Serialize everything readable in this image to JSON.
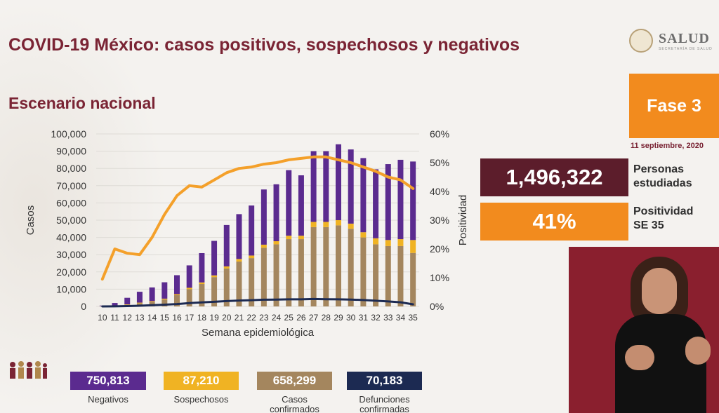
{
  "header": {
    "title": "COVID-19 México: casos positivos, sospechosos y negativos",
    "subtitle": "Escenario nacional"
  },
  "logo": {
    "name": "SALUD",
    "sub": "SECRETARÍA DE SALUD"
  },
  "phase": {
    "label": "Fase 3",
    "date": "11 septiembre, 2020"
  },
  "stats": [
    {
      "value": "1,496,322",
      "label_1": "Personas",
      "label_2": "estudiadas",
      "color": "#5c1d2b"
    },
    {
      "value": "41%",
      "label_1": "Positividad",
      "label_2": "SE 35",
      "color": "#f28b1e"
    }
  ],
  "legend": [
    {
      "value": "750,813",
      "label_1": "Negativos",
      "label_2": "",
      "color": "#5b2b8f"
    },
    {
      "value": "87,210",
      "label_1": "Sospechosos",
      "label_2": "",
      "color": "#f0b323"
    },
    {
      "value": "658,299",
      "label_1": "Casos",
      "label_2": "confirmados",
      "color": "#a4865e"
    },
    {
      "value": "70,183",
      "label_1": "Defunciones",
      "label_2": "confirmadas",
      "color": "#1c2a52"
    }
  ],
  "icons": {
    "logo": "government-seal-icon",
    "people": "people-group-icon"
  },
  "chart_data": {
    "type": "bar",
    "stacked": true,
    "xlabel": "Semana epidemiológica",
    "ylabel": "Casos",
    "y2label": "Positividad",
    "ylim": [
      0,
      100000
    ],
    "y2lim": [
      0,
      60
    ],
    "yticks": [
      "0",
      "10,000",
      "20,000",
      "30,000",
      "40,000",
      "50,000",
      "60,000",
      "70,000",
      "80,000",
      "90,000",
      "100,000"
    ],
    "y2ticks": [
      "0%",
      "10%",
      "20%",
      "30%",
      "40%",
      "50%",
      "60%"
    ],
    "categories": [
      "10",
      "11",
      "12",
      "13",
      "14",
      "15",
      "16",
      "17",
      "18",
      "19",
      "20",
      "21",
      "22",
      "23",
      "24",
      "25",
      "26",
      "27",
      "28",
      "29",
      "30",
      "31",
      "32",
      "33",
      "34",
      "35"
    ],
    "series": [
      {
        "name": "Casos confirmados",
        "color": "#a4865e",
        "values": [
          100,
          500,
          900,
          1800,
          2500,
          4000,
          6500,
          10000,
          13000,
          17000,
          22000,
          26000,
          28000,
          34000,
          36000,
          39000,
          39000,
          46000,
          46000,
          47000,
          45000,
          40000,
          36000,
          35000,
          35000,
          31000
        ]
      },
      {
        "name": "Sospechosos",
        "color": "#f0b323",
        "values": [
          50,
          100,
          300,
          400,
          500,
          500,
          600,
          800,
          900,
          1000,
          1200,
          1500,
          1500,
          1800,
          1800,
          2000,
          2000,
          3000,
          3000,
          3000,
          3000,
          3000,
          3500,
          3500,
          4000,
          7500
        ]
      },
      {
        "name": "Negativos",
        "color": "#5b2b8f",
        "values": [
          350,
          1400,
          3800,
          6300,
          8000,
          9500,
          11000,
          13000,
          17000,
          20000,
          24000,
          26000,
          29000,
          32000,
          33000,
          38000,
          35000,
          41000,
          41000,
          44000,
          43000,
          43000,
          40000,
          44000,
          46000,
          45500
        ]
      }
    ],
    "lines": [
      {
        "name": "Defunciones confirmadas",
        "color": "#1c2a52",
        "axis": "left",
        "values": [
          0,
          50,
          200,
          400,
          700,
          1000,
          1400,
          1900,
          2300,
          2700,
          3100,
          3400,
          3600,
          3900,
          4000,
          4100,
          4100,
          4300,
          4200,
          4100,
          4000,
          3700,
          3300,
          2900,
          2400,
          1200
        ]
      },
      {
        "name": "Positividad",
        "color": "#f4a02a",
        "axis": "right",
        "values": [
          9.5,
          20,
          18.5,
          18,
          24,
          32,
          38.5,
          42,
          41.5,
          44,
          46.5,
          48,
          48.5,
          49.5,
          50,
          51,
          51.5,
          52,
          52,
          51,
          50,
          48.5,
          47,
          45,
          44,
          41
        ]
      }
    ]
  }
}
